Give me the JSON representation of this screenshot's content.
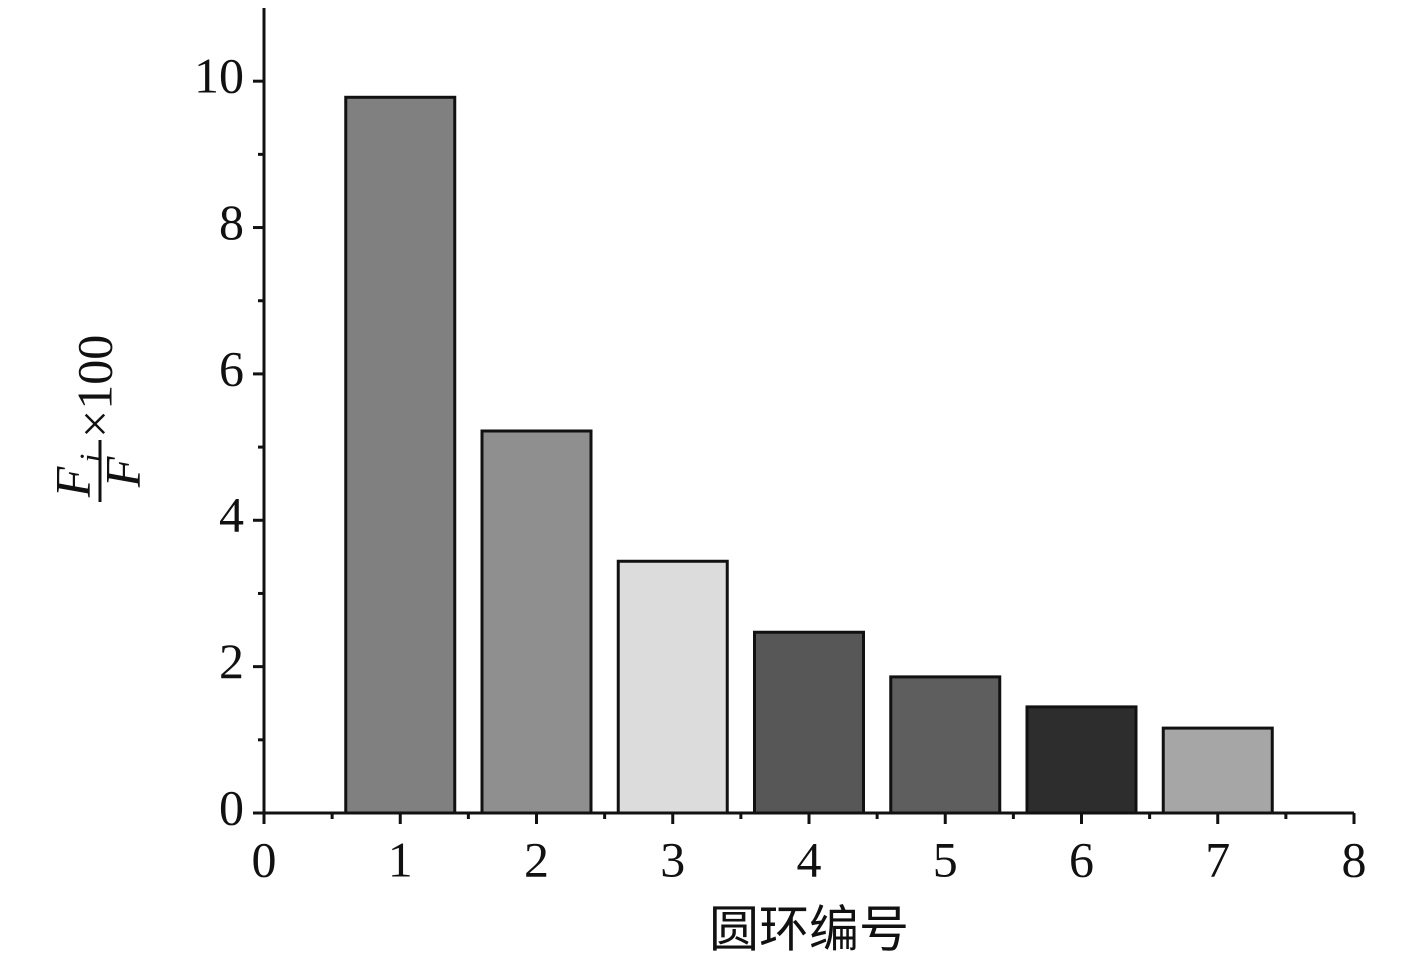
{
  "chart_data": {
    "type": "bar",
    "x_label": "圆环编号",
    "y_label": {
      "numerator": "F",
      "subscript": "i",
      "denominator": "F",
      "suffix": "×100"
    },
    "x": [
      1,
      2,
      3,
      4,
      5,
      6,
      7
    ],
    "values": [
      9.78,
      5.22,
      3.44,
      2.47,
      1.86,
      1.45,
      1.16
    ],
    "colors": [
      "#808080",
      "#8f8f8f",
      "#dcdcdc",
      "#575757",
      "#5e5e5e",
      "#2d2d2d",
      "#a6a6a6"
    ],
    "xlim": [
      0,
      8
    ],
    "xticks": [
      0,
      1,
      2,
      3,
      4,
      5,
      6,
      7,
      8
    ],
    "ylim": [
      0,
      11
    ],
    "yticks": [
      0,
      2,
      4,
      6,
      8,
      10
    ],
    "grid": false
  }
}
